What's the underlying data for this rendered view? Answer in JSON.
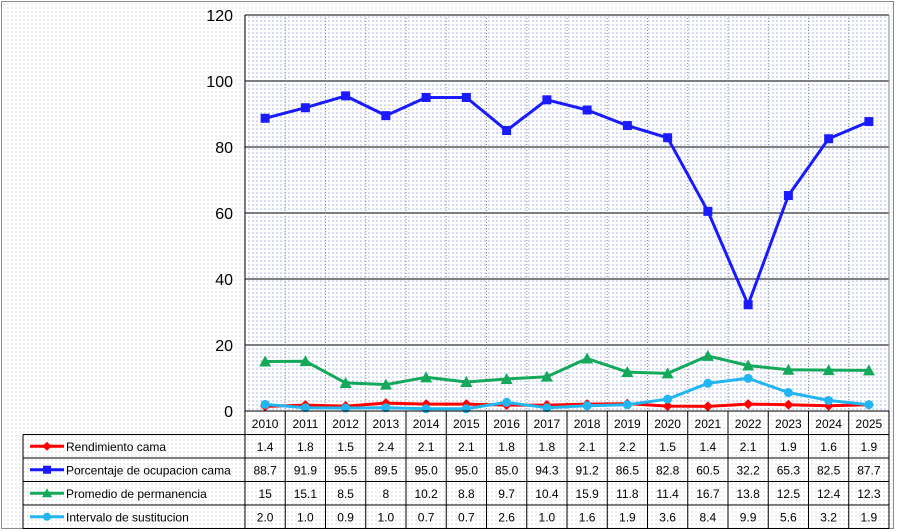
{
  "chart_data": {
    "type": "line",
    "title": "",
    "xlabel": "",
    "ylabel": "",
    "ylim": [
      0,
      120
    ],
    "yticks": [
      0,
      20,
      40,
      60,
      80,
      100,
      120
    ],
    "grid": true,
    "legend": "data-table",
    "categories": [
      "2010",
      "2011",
      "2012",
      "2013",
      "2014",
      "2015",
      "2016",
      "2017",
      "2018",
      "2019",
      "2020",
      "2021",
      "2022",
      "2023",
      "2024",
      "2025"
    ],
    "series": [
      {
        "name": "Rendimiento cama",
        "color": "#ff0000",
        "marker": "diamond",
        "values": [
          1.4,
          1.8,
          1.5,
          2.4,
          2.1,
          2.1,
          1.8,
          1.8,
          2.1,
          2.2,
          1.5,
          1.4,
          2.1,
          1.9,
          1.6,
          1.9
        ],
        "labels": [
          "1.4",
          "1.8",
          "1.5",
          "2.4",
          "2.1",
          "2.1",
          "1.8",
          "1.8",
          "2.1",
          "2.2",
          "1.5",
          "1.4",
          "2.1",
          "1.9",
          "1.6",
          "1.9"
        ]
      },
      {
        "name": "Porcentaje de ocupacion cama",
        "color": "#1a1aff",
        "marker": "square",
        "values": [
          88.7,
          91.9,
          95.5,
          89.5,
          95.0,
          95.0,
          85.0,
          94.3,
          91.2,
          86.5,
          82.8,
          60.5,
          32.2,
          65.3,
          82.5,
          87.7
        ],
        "labels": [
          "88.7",
          "91.9",
          "95.5",
          "89.5",
          "95.0",
          "95.0",
          "85.0",
          "94.3",
          "91.2",
          "86.5",
          "82.8",
          "60.5",
          "32.2",
          "65.3",
          "82.5",
          "87.7"
        ]
      },
      {
        "name": "Promedio de permanencia",
        "color": "#14a85a",
        "marker": "triangle",
        "values": [
          15,
          15.1,
          8.5,
          8,
          10.2,
          8.8,
          9.7,
          10.4,
          15.9,
          11.8,
          11.4,
          16.7,
          13.8,
          12.5,
          12.4,
          12.3
        ],
        "labels": [
          "15",
          "15.1",
          "8.5",
          "8",
          "10.2",
          "8.8",
          "9.7",
          "10.4",
          "15.9",
          "11.8",
          "11.4",
          "16.7",
          "13.8",
          "12.5",
          "12.4",
          "12.3"
        ]
      },
      {
        "name": "Intervalo de sustitucion",
        "color": "#22b6f0",
        "marker": "circle",
        "values": [
          2.0,
          1.0,
          0.9,
          1.0,
          0.7,
          0.7,
          2.6,
          1.0,
          1.6,
          1.9,
          3.6,
          8.4,
          9.9,
          5.6,
          3.2,
          1.9
        ],
        "labels": [
          "2.0",
          "1.0",
          "0.9",
          "1.0",
          "0.7",
          "0.7",
          "2.6",
          "1.0",
          "1.6",
          "1.9",
          "3.6",
          "8.4",
          "9.9",
          "5.6",
          "3.2",
          "1.9"
        ]
      }
    ]
  }
}
